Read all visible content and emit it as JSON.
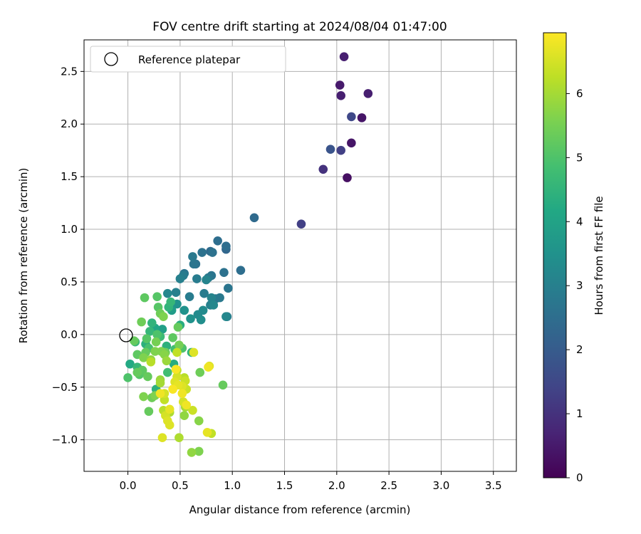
{
  "chart_data": {
    "type": "scatter",
    "title": "FOV centre drift starting at 2024/08/04 01:47:00",
    "xlabel": "Angular distance from reference (arcmin)",
    "ylabel": "Rotation from reference (arcmin)",
    "xlim": [
      -0.42,
      3.72
    ],
    "ylim": [
      -1.3,
      2.8
    ],
    "xticks": [
      "0.0",
      "0.5",
      "1.0",
      "1.5",
      "2.0",
      "2.5",
      "3.0",
      "3.5"
    ],
    "yticks": [
      "−1.0",
      "−0.5",
      "0.0",
      "0.5",
      "1.0",
      "1.5",
      "2.0",
      "2.5"
    ],
    "grid": true,
    "legend": {
      "position": "top-left",
      "entries": [
        "Reference platepar"
      ]
    },
    "reference_point": {
      "x": 0.0,
      "y": 0.0
    },
    "colorbar": {
      "label": "Hours from first FF file",
      "colormap": "viridis",
      "range": [
        0,
        6.95
      ],
      "ticks": [
        "0",
        "1",
        "2",
        "3",
        "4",
        "5",
        "6"
      ]
    },
    "points": [
      {
        "x": 2.07,
        "y": 2.64,
        "h": 0.6
      },
      {
        "x": 2.03,
        "y": 2.37,
        "h": 0.5
      },
      {
        "x": 2.04,
        "y": 2.27,
        "h": 0.6
      },
      {
        "x": 2.3,
        "y": 2.29,
        "h": 0.6
      },
      {
        "x": 2.14,
        "y": 2.07,
        "h": 1.5
      },
      {
        "x": 2.24,
        "y": 2.06,
        "h": 0.4
      },
      {
        "x": 2.14,
        "y": 1.82,
        "h": 0.4
      },
      {
        "x": 1.94,
        "y": 1.76,
        "h": 1.8
      },
      {
        "x": 2.04,
        "y": 1.75,
        "h": 1.3
      },
      {
        "x": 1.87,
        "y": 1.57,
        "h": 1.0
      },
      {
        "x": 2.1,
        "y": 1.49,
        "h": 0.3
      },
      {
        "x": 1.66,
        "y": 1.05,
        "h": 1.3
      },
      {
        "x": 1.21,
        "y": 1.11,
        "h": 2.4
      },
      {
        "x": 0.86,
        "y": 0.89,
        "h": 2.5
      },
      {
        "x": 0.94,
        "y": 0.84,
        "h": 2.5
      },
      {
        "x": 0.94,
        "y": 0.81,
        "h": 2.3
      },
      {
        "x": 0.71,
        "y": 0.78,
        "h": 2.6
      },
      {
        "x": 0.79,
        "y": 0.79,
        "h": 2.4
      },
      {
        "x": 0.81,
        "y": 0.78,
        "h": 2.6
      },
      {
        "x": 0.62,
        "y": 0.74,
        "h": 2.8
      },
      {
        "x": 0.63,
        "y": 0.67,
        "h": 2.7
      },
      {
        "x": 0.65,
        "y": 0.67,
        "h": 2.6
      },
      {
        "x": 1.08,
        "y": 0.61,
        "h": 2.5
      },
      {
        "x": 0.92,
        "y": 0.59,
        "h": 2.6
      },
      {
        "x": 0.54,
        "y": 0.58,
        "h": 2.7
      },
      {
        "x": 0.53,
        "y": 0.56,
        "h": 2.9
      },
      {
        "x": 0.8,
        "y": 0.56,
        "h": 2.7
      },
      {
        "x": 0.77,
        "y": 0.54,
        "h": 2.8
      },
      {
        "x": 0.66,
        "y": 0.53,
        "h": 2.9
      },
      {
        "x": 0.75,
        "y": 0.52,
        "h": 3.1
      },
      {
        "x": 0.5,
        "y": 0.53,
        "h": 3.0
      },
      {
        "x": 0.96,
        "y": 0.44,
        "h": 2.7
      },
      {
        "x": 0.38,
        "y": 0.39,
        "h": 3.2
      },
      {
        "x": 0.46,
        "y": 0.4,
        "h": 3.0
      },
      {
        "x": 0.73,
        "y": 0.39,
        "h": 2.9
      },
      {
        "x": 0.59,
        "y": 0.36,
        "h": 2.9
      },
      {
        "x": 0.84,
        "y": 0.34,
        "h": 2.7
      },
      {
        "x": 0.8,
        "y": 0.35,
        "h": 3.1
      },
      {
        "x": 0.88,
        "y": 0.35,
        "h": 2.8
      },
      {
        "x": 0.16,
        "y": 0.35,
        "h": 5.2
      },
      {
        "x": 0.28,
        "y": 0.36,
        "h": 5.1
      },
      {
        "x": 0.41,
        "y": 0.31,
        "h": 4.6
      },
      {
        "x": 0.47,
        "y": 0.29,
        "h": 3.5
      },
      {
        "x": 0.79,
        "y": 0.28,
        "h": 3.0
      },
      {
        "x": 0.82,
        "y": 0.28,
        "h": 3.2
      },
      {
        "x": 0.29,
        "y": 0.26,
        "h": 5.1
      },
      {
        "x": 0.39,
        "y": 0.26,
        "h": 4.5
      },
      {
        "x": 0.42,
        "y": 0.23,
        "h": 3.8
      },
      {
        "x": 0.54,
        "y": 0.23,
        "h": 3.5
      },
      {
        "x": 0.72,
        "y": 0.23,
        "h": 3.3
      },
      {
        "x": 0.67,
        "y": 0.19,
        "h": 3.3
      },
      {
        "x": 0.31,
        "y": 0.2,
        "h": 5.4
      },
      {
        "x": 0.34,
        "y": 0.17,
        "h": 5.6
      },
      {
        "x": 0.94,
        "y": 0.17,
        "h": 3.2
      },
      {
        "x": 0.95,
        "y": 0.17,
        "h": 2.9
      },
      {
        "x": 0.6,
        "y": 0.15,
        "h": 3.5
      },
      {
        "x": 0.7,
        "y": 0.14,
        "h": 3.4
      },
      {
        "x": 0.13,
        "y": 0.12,
        "h": 5.4
      },
      {
        "x": 0.23,
        "y": 0.11,
        "h": 4.5
      },
      {
        "x": 0.5,
        "y": 0.09,
        "h": 4.3
      },
      {
        "x": 0.48,
        "y": 0.07,
        "h": 5.3
      },
      {
        "x": 0.26,
        "y": 0.06,
        "h": 4.1
      },
      {
        "x": 0.33,
        "y": 0.05,
        "h": 3.9
      },
      {
        "x": 0.21,
        "y": 0.03,
        "h": 4.6
      },
      {
        "x": 0.28,
        "y": 0.0,
        "h": 5.0
      },
      {
        "x": 0.31,
        "y": -0.02,
        "h": 4.7
      },
      {
        "x": 0.43,
        "y": -0.03,
        "h": 5.2
      },
      {
        "x": 0.18,
        "y": -0.04,
        "h": 5.1
      },
      {
        "x": 0.06,
        "y": -0.06,
        "h": 5.3
      },
      {
        "x": 0.07,
        "y": -0.07,
        "h": 4.6
      },
      {
        "x": 0.27,
        "y": -0.07,
        "h": 5.5
      },
      {
        "x": 0.17,
        "y": -0.09,
        "h": 4.4
      },
      {
        "x": 0.37,
        "y": -0.11,
        "h": 4.4
      },
      {
        "x": 0.49,
        "y": -0.1,
        "h": 5.5
      },
      {
        "x": 0.45,
        "y": -0.14,
        "h": 4.8
      },
      {
        "x": 0.52,
        "y": -0.13,
        "h": 5.0
      },
      {
        "x": 0.2,
        "y": -0.13,
        "h": 4.9
      },
      {
        "x": 0.32,
        "y": -0.16,
        "h": 5.6
      },
      {
        "x": 0.26,
        "y": -0.16,
        "h": 5.6
      },
      {
        "x": 0.17,
        "y": -0.17,
        "h": 5.3
      },
      {
        "x": 0.36,
        "y": -0.17,
        "h": 5.4
      },
      {
        "x": 0.47,
        "y": -0.17,
        "h": 6.3
      },
      {
        "x": 0.61,
        "y": -0.17,
        "h": 4.5
      },
      {
        "x": 0.63,
        "y": -0.17,
        "h": 6.6
      },
      {
        "x": 0.09,
        "y": -0.19,
        "h": 5.2
      },
      {
        "x": 0.35,
        "y": -0.19,
        "h": 5.7
      },
      {
        "x": 0.15,
        "y": -0.22,
        "h": 5.6
      },
      {
        "x": 0.22,
        "y": -0.24,
        "h": 5.8
      },
      {
        "x": 0.37,
        "y": -0.25,
        "h": 5.9
      },
      {
        "x": 0.22,
        "y": -0.26,
        "h": 6.2
      },
      {
        "x": 0.44,
        "y": -0.28,
        "h": 4.3
      },
      {
        "x": 0.02,
        "y": -0.28,
        "h": 4.2
      },
      {
        "x": 0.78,
        "y": -0.3,
        "h": 6.6
      },
      {
        "x": 0.77,
        "y": -0.31,
        "h": 6.8
      },
      {
        "x": 0.09,
        "y": -0.31,
        "h": 4.6
      },
      {
        "x": 0.46,
        "y": -0.33,
        "h": 6.9
      },
      {
        "x": 0.47,
        "y": -0.34,
        "h": 6.2
      },
      {
        "x": 0.14,
        "y": -0.34,
        "h": 5.2
      },
      {
        "x": 0.09,
        "y": -0.36,
        "h": 5.3
      },
      {
        "x": 0.38,
        "y": -0.36,
        "h": 4.8
      },
      {
        "x": 0.69,
        "y": -0.36,
        "h": 5.4
      },
      {
        "x": 0.11,
        "y": -0.38,
        "h": 5.1
      },
      {
        "x": 0.0,
        "y": -0.41,
        "h": 5.0
      },
      {
        "x": 0.19,
        "y": -0.4,
        "h": 5.3
      },
      {
        "x": 0.47,
        "y": -0.4,
        "h": 6.5
      },
      {
        "x": 0.54,
        "y": -0.41,
        "h": 6.2
      },
      {
        "x": 0.31,
        "y": -0.43,
        "h": 5.9
      },
      {
        "x": 0.45,
        "y": -0.45,
        "h": 6.6
      },
      {
        "x": 0.55,
        "y": -0.44,
        "h": 6.4
      },
      {
        "x": 0.91,
        "y": -0.48,
        "h": 5.3
      },
      {
        "x": 0.31,
        "y": -0.46,
        "h": 6.0
      },
      {
        "x": 0.48,
        "y": -0.48,
        "h": 6.7
      },
      {
        "x": 0.52,
        "y": -0.49,
        "h": 6.6
      },
      {
        "x": 0.27,
        "y": -0.52,
        "h": 4.4
      },
      {
        "x": 0.43,
        "y": -0.52,
        "h": 6.9
      },
      {
        "x": 0.56,
        "y": -0.52,
        "h": 6.4
      },
      {
        "x": 0.31,
        "y": -0.56,
        "h": 6.8
      },
      {
        "x": 0.35,
        "y": -0.56,
        "h": 6.5
      },
      {
        "x": 0.52,
        "y": -0.56,
        "h": 6.8
      },
      {
        "x": 0.26,
        "y": -0.58,
        "h": 5.6
      },
      {
        "x": 0.15,
        "y": -0.59,
        "h": 5.6
      },
      {
        "x": 0.23,
        "y": -0.6,
        "h": 5.4
      },
      {
        "x": 0.35,
        "y": -0.62,
        "h": 6.3
      },
      {
        "x": 0.53,
        "y": -0.64,
        "h": 6.5
      },
      {
        "x": 0.56,
        "y": -0.67,
        "h": 6.8
      },
      {
        "x": 0.55,
        "y": -0.69,
        "h": 6.0
      },
      {
        "x": 0.4,
        "y": -0.71,
        "h": 6.7
      },
      {
        "x": 0.62,
        "y": -0.72,
        "h": 6.4
      },
      {
        "x": 0.34,
        "y": -0.72,
        "h": 6.2
      },
      {
        "x": 0.2,
        "y": -0.73,
        "h": 5.3
      },
      {
        "x": 0.4,
        "y": -0.74,
        "h": 6.1
      },
      {
        "x": 0.54,
        "y": -0.77,
        "h": 5.8
      },
      {
        "x": 0.36,
        "y": -0.77,
        "h": 6.5
      },
      {
        "x": 0.38,
        "y": -0.82,
        "h": 6.6
      },
      {
        "x": 0.68,
        "y": -0.82,
        "h": 5.7
      },
      {
        "x": 0.4,
        "y": -0.86,
        "h": 6.6
      },
      {
        "x": 0.76,
        "y": -0.93,
        "h": 6.7
      },
      {
        "x": 0.8,
        "y": -0.94,
        "h": 6.3
      },
      {
        "x": 0.33,
        "y": -0.98,
        "h": 6.6
      },
      {
        "x": 0.49,
        "y": -0.98,
        "h": 6.1
      },
      {
        "x": 0.61,
        "y": -1.12,
        "h": 5.8
      },
      {
        "x": 0.68,
        "y": -1.11,
        "h": 5.6
      }
    ]
  }
}
